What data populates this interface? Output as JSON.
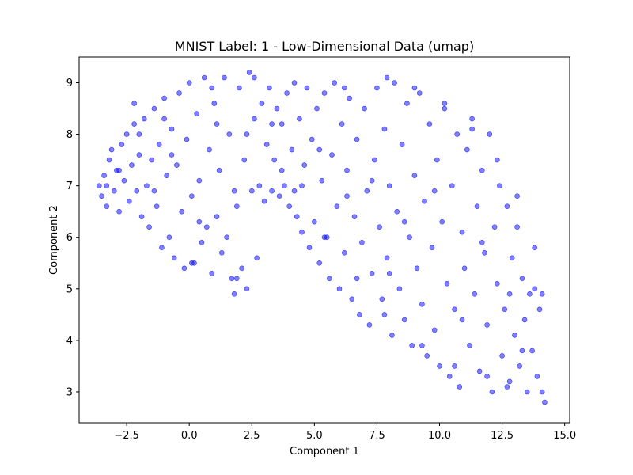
{
  "chart_data": {
    "type": "scatter",
    "title": "MNIST Label: 1 - Low-Dimensional Data (umap)",
    "xlabel": "Component 1",
    "ylabel": "Component 2",
    "xlim": [
      -4.4,
      15.2
    ],
    "ylim": [
      2.4,
      9.5
    ],
    "xticks": [
      -2.5,
      0.0,
      2.5,
      5.0,
      7.5,
      10.0,
      12.5,
      15.0
    ],
    "xtick_labels": [
      "−2.5",
      "0.0",
      "2.5",
      "5.0",
      "7.5",
      "10.0",
      "12.5",
      "15.0"
    ],
    "yticks": [
      3,
      4,
      5,
      6,
      7,
      8,
      9
    ],
    "ytick_labels": [
      "3",
      "4",
      "5",
      "6",
      "7",
      "8",
      "9"
    ],
    "grid": false,
    "legend": "none",
    "marker_color": "#0000ff",
    "marker_alpha": 0.5,
    "series": [
      {
        "points": [
          [
            -3.6,
            7.0
          ],
          [
            -3.5,
            6.8
          ],
          [
            -3.4,
            7.2
          ],
          [
            -3.3,
            6.6
          ],
          [
            -3.2,
            7.5
          ],
          [
            -3.1,
            7.7
          ],
          [
            -3.0,
            6.9
          ],
          [
            -2.9,
            7.3
          ],
          [
            -2.8,
            6.5
          ],
          [
            -2.7,
            7.8
          ],
          [
            -2.6,
            7.1
          ],
          [
            -2.5,
            8.0
          ],
          [
            -2.4,
            6.7
          ],
          [
            -2.3,
            7.4
          ],
          [
            -2.2,
            8.2
          ],
          [
            -2.1,
            6.9
          ],
          [
            -2.0,
            7.6
          ],
          [
            -1.9,
            6.4
          ],
          [
            -1.8,
            8.3
          ],
          [
            -1.7,
            7.0
          ],
          [
            -1.6,
            6.2
          ],
          [
            -1.5,
            7.5
          ],
          [
            -1.4,
            8.5
          ],
          [
            -1.3,
            6.6
          ],
          [
            -1.2,
            7.8
          ],
          [
            -1.1,
            5.8
          ],
          [
            -1.0,
            8.7
          ],
          [
            -0.9,
            7.2
          ],
          [
            -0.8,
            6.0
          ],
          [
            -0.7,
            8.1
          ],
          [
            -0.6,
            5.6
          ],
          [
            -0.5,
            7.4
          ],
          [
            -0.4,
            8.8
          ],
          [
            -0.3,
            6.5
          ],
          [
            -0.2,
            5.4
          ],
          [
            -0.1,
            7.9
          ],
          [
            0.0,
            9.0
          ],
          [
            0.1,
            6.8
          ],
          [
            0.2,
            5.5
          ],
          [
            0.3,
            8.4
          ],
          [
            0.4,
            7.1
          ],
          [
            0.5,
            5.9
          ],
          [
            0.6,
            9.1
          ],
          [
            0.7,
            6.2
          ],
          [
            0.8,
            7.7
          ],
          [
            0.9,
            5.3
          ],
          [
            1.0,
            8.6
          ],
          [
            1.1,
            6.4
          ],
          [
            1.2,
            7.3
          ],
          [
            1.3,
            5.7
          ],
          [
            1.4,
            9.1
          ],
          [
            1.5,
            6.0
          ],
          [
            1.6,
            8.0
          ],
          [
            1.7,
            5.2
          ],
          [
            1.8,
            4.9
          ],
          [
            1.9,
            6.6
          ],
          [
            2.0,
            8.9
          ],
          [
            2.1,
            5.4
          ],
          [
            2.2,
            7.5
          ],
          [
            2.3,
            5.0
          ],
          [
            2.4,
            9.2
          ],
          [
            2.5,
            6.9
          ],
          [
            2.6,
            8.3
          ],
          [
            2.7,
            5.6
          ],
          [
            2.8,
            7.0
          ],
          [
            2.9,
            8.6
          ],
          [
            3.0,
            6.7
          ],
          [
            3.1,
            7.8
          ],
          [
            3.2,
            8.9
          ],
          [
            3.3,
            6.9
          ],
          [
            3.4,
            7.5
          ],
          [
            3.5,
            8.5
          ],
          [
            3.6,
            6.8
          ],
          [
            3.7,
            8.2
          ],
          [
            3.8,
            7.0
          ],
          [
            3.9,
            8.8
          ],
          [
            4.0,
            6.6
          ],
          [
            4.1,
            7.7
          ],
          [
            4.2,
            9.0
          ],
          [
            4.3,
            6.4
          ],
          [
            4.4,
            8.3
          ],
          [
            4.5,
            6.1
          ],
          [
            4.6,
            7.4
          ],
          [
            4.7,
            8.9
          ],
          [
            4.8,
            5.8
          ],
          [
            4.9,
            7.9
          ],
          [
            5.0,
            6.3
          ],
          [
            5.1,
            8.5
          ],
          [
            5.2,
            5.5
          ],
          [
            5.3,
            7.1
          ],
          [
            5.4,
            8.8
          ],
          [
            5.5,
            6.0
          ],
          [
            5.6,
            5.2
          ],
          [
            5.7,
            7.6
          ],
          [
            5.8,
            9.0
          ],
          [
            5.9,
            6.6
          ],
          [
            6.0,
            5.0
          ],
          [
            6.1,
            8.2
          ],
          [
            6.2,
            5.7
          ],
          [
            6.3,
            7.3
          ],
          [
            6.4,
            8.7
          ],
          [
            6.5,
            4.8
          ],
          [
            6.6,
            6.4
          ],
          [
            6.7,
            7.9
          ],
          [
            6.8,
            4.5
          ],
          [
            6.9,
            5.9
          ],
          [
            7.0,
            8.5
          ],
          [
            7.1,
            6.9
          ],
          [
            7.2,
            4.3
          ],
          [
            7.3,
            5.3
          ],
          [
            7.4,
            7.5
          ],
          [
            7.5,
            8.9
          ],
          [
            7.6,
            6.2
          ],
          [
            7.7,
            4.8
          ],
          [
            7.8,
            8.1
          ],
          [
            7.9,
            5.6
          ],
          [
            8.0,
            7.0
          ],
          [
            8.1,
            4.1
          ],
          [
            8.2,
            9.0
          ],
          [
            8.3,
            6.5
          ],
          [
            8.4,
            5.0
          ],
          [
            8.5,
            7.8
          ],
          [
            8.6,
            4.4
          ],
          [
            8.7,
            8.6
          ],
          [
            8.8,
            6.0
          ],
          [
            8.9,
            3.9
          ],
          [
            9.0,
            7.2
          ],
          [
            9.1,
            5.4
          ],
          [
            9.2,
            8.8
          ],
          [
            9.3,
            4.7
          ],
          [
            9.4,
            6.7
          ],
          [
            9.5,
            3.7
          ],
          [
            9.6,
            8.2
          ],
          [
            9.7,
            5.8
          ],
          [
            9.8,
            4.2
          ],
          [
            9.9,
            7.5
          ],
          [
            10.0,
            3.5
          ],
          [
            10.1,
            6.3
          ],
          [
            10.2,
            8.5
          ],
          [
            10.3,
            5.1
          ],
          [
            10.4,
            3.3
          ],
          [
            10.5,
            7.0
          ],
          [
            10.6,
            4.6
          ],
          [
            10.7,
            8.0
          ],
          [
            10.8,
            3.1
          ],
          [
            10.9,
            6.1
          ],
          [
            11.0,
            5.4
          ],
          [
            11.1,
            7.7
          ],
          [
            11.2,
            3.9
          ],
          [
            11.3,
            8.3
          ],
          [
            11.4,
            4.9
          ],
          [
            11.5,
            6.6
          ],
          [
            11.6,
            3.4
          ],
          [
            11.7,
            7.3
          ],
          [
            11.8,
            5.7
          ],
          [
            11.9,
            4.3
          ],
          [
            12.0,
            8.0
          ],
          [
            12.1,
            3.0
          ],
          [
            12.2,
            6.2
          ],
          [
            12.3,
            5.1
          ],
          [
            12.4,
            7.0
          ],
          [
            12.5,
            3.7
          ],
          [
            12.6,
            4.6
          ],
          [
            12.7,
            6.6
          ],
          [
            12.8,
            3.2
          ],
          [
            12.9,
            5.6
          ],
          [
            13.0,
            4.1
          ],
          [
            13.1,
            6.2
          ],
          [
            13.2,
            3.5
          ],
          [
            13.3,
            5.2
          ],
          [
            13.4,
            4.4
          ],
          [
            13.5,
            3.0
          ],
          [
            13.6,
            4.9
          ],
          [
            13.7,
            3.8
          ],
          [
            13.8,
            5.0
          ],
          [
            13.9,
            3.3
          ],
          [
            14.0,
            4.6
          ],
          [
            14.1,
            3.0
          ],
          [
            14.2,
            2.8
          ],
          [
            -3.3,
            7.0
          ],
          [
            -2.8,
            7.3
          ],
          [
            -2.0,
            8.0
          ],
          [
            -1.4,
            6.9
          ],
          [
            -0.7,
            7.6
          ],
          [
            0.4,
            6.3
          ],
          [
            1.1,
            8.2
          ],
          [
            1.8,
            6.9
          ],
          [
            2.3,
            8.0
          ],
          [
            3.7,
            7.3
          ],
          [
            4.5,
            7.0
          ],
          [
            5.2,
            7.7
          ],
          [
            6.3,
            6.8
          ],
          [
            7.3,
            7.1
          ],
          [
            8.6,
            6.3
          ],
          [
            9.8,
            6.9
          ],
          [
            10.9,
            4.4
          ],
          [
            11.7,
            5.9
          ],
          [
            12.8,
            4.9
          ],
          [
            13.3,
            3.8
          ],
          [
            8.0,
            5.3
          ],
          [
            9.3,
            3.9
          ],
          [
            10.6,
            3.5
          ],
          [
            11.9,
            3.3
          ],
          [
            12.7,
            3.1
          ],
          [
            6.7,
            5.2
          ],
          [
            7.8,
            4.5
          ],
          [
            5.4,
            6.0
          ],
          [
            4.2,
            6.9
          ],
          [
            -2.2,
            8.6
          ],
          [
            -1.0,
            8.3
          ],
          [
            0.9,
            8.9
          ],
          [
            2.6,
            9.1
          ],
          [
            3.3,
            8.2
          ],
          [
            6.2,
            8.9
          ],
          [
            7.9,
            9.1
          ],
          [
            9.0,
            8.9
          ],
          [
            10.2,
            8.6
          ],
          [
            11.3,
            8.1
          ],
          [
            12.3,
            7.5
          ],
          [
            13.1,
            6.8
          ],
          [
            13.8,
            5.8
          ],
          [
            14.1,
            4.9
          ],
          [
            1.9,
            5.2
          ],
          [
            0.1,
            5.5
          ]
        ]
      }
    ]
  }
}
